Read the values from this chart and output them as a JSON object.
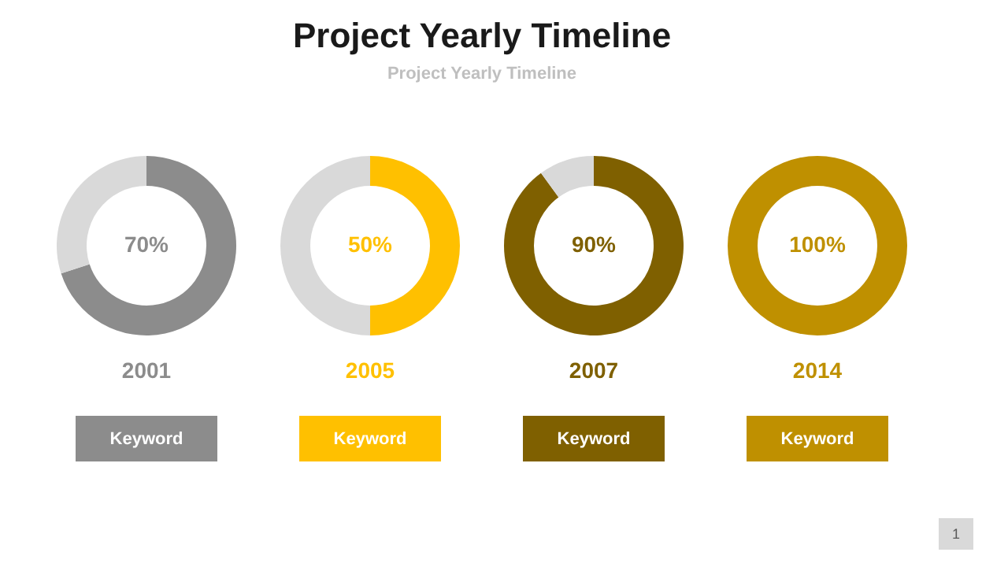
{
  "chart_data": [
    {
      "type": "donut",
      "title": "Project Yearly Timeline",
      "subtitle": "Project Yearly Timeline",
      "categories": [
        null,
        null
      ],
      "values": [
        70,
        30
      ],
      "colors": [
        "#8c8c8c",
        "#d9d9d9"
      ],
      "value_labels": [
        "70%",
        null
      ],
      "annotations": [
        "2001",
        "Keyword"
      ]
    },
    {
      "type": "donut",
      "categories": [
        null,
        null
      ],
      "values": [
        50,
        50
      ],
      "colors": [
        "#ffc000",
        "#d9d9d9"
      ],
      "value_labels": [
        "50%",
        null
      ],
      "annotations": [
        "2005",
        "Keyword"
      ]
    },
    {
      "type": "donut",
      "categories": [
        null,
        null
      ],
      "values": [
        90,
        10
      ],
      "colors": [
        "#7f6000",
        "#d9d9d9"
      ],
      "value_labels": [
        "90%",
        null
      ],
      "annotations": [
        "2007",
        "Keyword"
      ]
    },
    {
      "type": "donut",
      "categories": [
        null,
        null
      ],
      "values": [
        100,
        0
      ],
      "colors": [
        "#bf9000",
        "#d9d9d9"
      ],
      "value_labels": [
        "100%",
        null
      ],
      "annotations": [
        "2014",
        "Keyword",
        "1"
      ]
    }
  ]
}
